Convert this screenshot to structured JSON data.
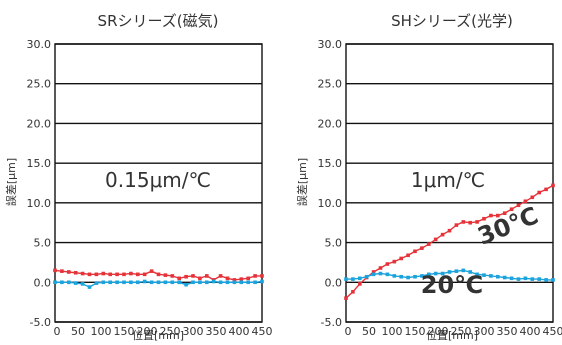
{
  "chart_data": [
    {
      "type": "line",
      "title": "SRシリーズ(磁気)",
      "xlabel": "位置[mm]",
      "ylabel": "誤差[μm]",
      "xlim": [
        0,
        450
      ],
      "ylim": [
        -5,
        30
      ],
      "xticks": [
        "0",
        "50",
        "100",
        "150",
        "200",
        "250",
        "300",
        "350",
        "400",
        "450"
      ],
      "yticks": [
        "30.0",
        "25.0",
        "20.0",
        "15.0",
        "10.0",
        "5.0",
        "0.0",
        "-5.0"
      ],
      "grid": "horizontal",
      "annotation": "0.15μm/℃",
      "series": [
        {
          "color": "#e6333a",
          "x": [
            0,
            15,
            30,
            45,
            60,
            75,
            90,
            105,
            120,
            135,
            150,
            165,
            180,
            195,
            210,
            225,
            240,
            255,
            270,
            285,
            300,
            315,
            330,
            345,
            360,
            375,
            390,
            405,
            420,
            435,
            450
          ],
          "values": [
            1.5,
            1.4,
            1.3,
            1.2,
            1.1,
            1.0,
            1.0,
            1.1,
            1.0,
            1.0,
            1.0,
            1.1,
            1.0,
            1.0,
            1.4,
            1.0,
            0.9,
            0.8,
            0.5,
            0.7,
            0.8,
            0.5,
            0.8,
            0.3,
            0.8,
            0.5,
            0.3,
            0.4,
            0.5,
            0.8,
            0.8
          ]
        },
        {
          "color": "#1aa3dc",
          "x": [
            0,
            15,
            30,
            45,
            60,
            75,
            90,
            105,
            120,
            135,
            150,
            165,
            180,
            195,
            210,
            225,
            240,
            255,
            270,
            285,
            300,
            315,
            330,
            345,
            360,
            375,
            390,
            405,
            420,
            435,
            450
          ],
          "values": [
            0.0,
            0.0,
            0.0,
            -0.1,
            -0.2,
            -0.6,
            -0.1,
            0.0,
            0.0,
            0.0,
            0.0,
            0.0,
            0.0,
            0.1,
            0.0,
            0.0,
            0.0,
            0.0,
            0.0,
            -0.3,
            0.0,
            0.0,
            0.0,
            0.1,
            0.0,
            0.0,
            0.0,
            0.0,
            0.0,
            0.0,
            0.1
          ]
        }
      ]
    },
    {
      "type": "line",
      "title": "SHシリーズ(光学)",
      "xlabel": "位置[mm]",
      "ylabel": "誤差[μm]",
      "xlim": [
        0,
        450
      ],
      "ylim": [
        -5,
        30
      ],
      "xticks": [
        "0",
        "50",
        "100",
        "150",
        "200",
        "250",
        "300",
        "350",
        "400",
        "450"
      ],
      "yticks": [
        "30.0",
        "25.0",
        "20.0",
        "15.0",
        "10.0",
        "5.0",
        "0.0",
        "-5.0"
      ],
      "grid": "horizontal",
      "annotation": "1μm/℃",
      "series": [
        {
          "name": "30℃",
          "color": "#e6333a",
          "x": [
            0,
            15,
            30,
            45,
            60,
            75,
            90,
            105,
            120,
            135,
            150,
            165,
            180,
            195,
            210,
            225,
            240,
            255,
            270,
            285,
            300,
            315,
            330,
            345,
            360,
            375,
            390,
            405,
            420,
            435,
            450
          ],
          "values": [
            -2.0,
            -1.2,
            -0.2,
            0.6,
            1.3,
            1.8,
            2.3,
            2.6,
            3.0,
            3.4,
            3.9,
            4.3,
            4.8,
            5.4,
            6.0,
            6.5,
            7.2,
            7.6,
            7.5,
            7.6,
            8.0,
            8.4,
            8.4,
            8.7,
            9.2,
            9.7,
            10.2,
            10.7,
            11.3,
            11.7,
            12.2
          ]
        },
        {
          "name": "20℃",
          "color": "#1aa3dc",
          "x": [
            0,
            15,
            30,
            45,
            60,
            75,
            90,
            105,
            120,
            135,
            150,
            165,
            180,
            195,
            210,
            225,
            240,
            255,
            270,
            285,
            300,
            315,
            330,
            345,
            360,
            375,
            390,
            405,
            420,
            435,
            450
          ],
          "values": [
            0.4,
            0.4,
            0.5,
            0.7,
            1.0,
            1.1,
            1.0,
            0.8,
            0.7,
            0.6,
            0.7,
            0.8,
            1.0,
            1.1,
            1.1,
            1.3,
            1.4,
            1.5,
            1.3,
            1.0,
            0.9,
            0.8,
            0.7,
            0.6,
            0.5,
            0.4,
            0.5,
            0.4,
            0.4,
            0.3,
            0.3
          ]
        }
      ]
    }
  ]
}
